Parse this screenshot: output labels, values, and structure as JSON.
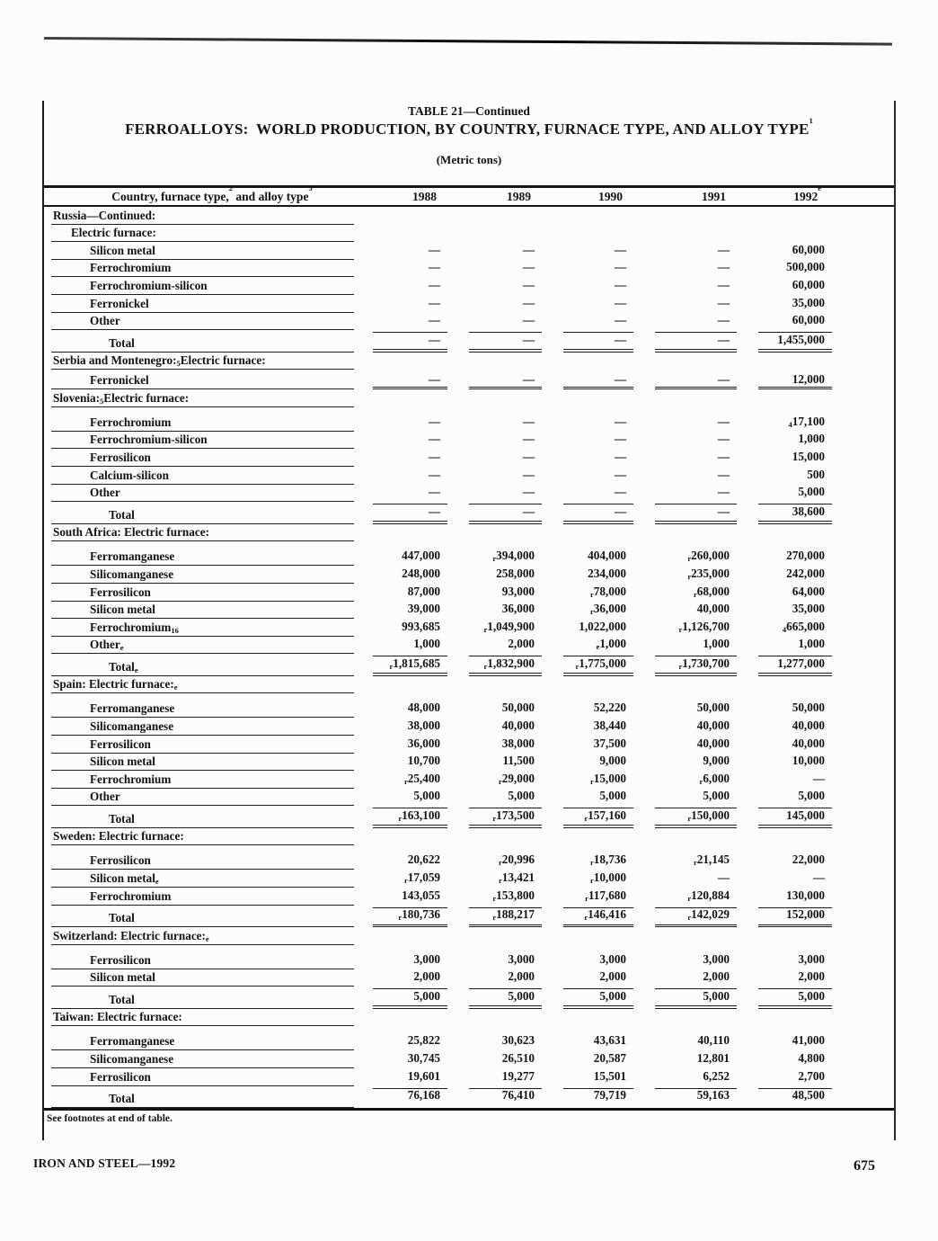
{
  "page": {
    "table_continuation": "TABLE 21—Continued",
    "title": "FERROALLOYS:  WORLD PRODUCTION, BY COUNTRY, FURNACE TYPE, AND ALLOY TYPE",
    "title_footnote_sup": "1",
    "units": "(Metric tons)",
    "see_footnotes": "See footnotes at end of table.",
    "footer_left": "IRON AND STEEL—1992",
    "page_number": "675"
  },
  "table": {
    "stub_header": {
      "t1": "Country, furnace type,",
      "s1": "2",
      "t2": " and alloy type",
      "s2": "3"
    },
    "year_columns": [
      {
        "v": "1988"
      },
      {
        "v": "1989"
      },
      {
        "v": "1990"
      },
      {
        "v": "1991"
      },
      {
        "v": "1992",
        "sup": "e"
      }
    ],
    "rows": [
      {
        "pre": "Russia—Continued:",
        "indent": 0,
        "type": "head"
      },
      {
        "pre": "Electric furnace:",
        "indent": 1,
        "type": "sub"
      },
      {
        "pre": "Silicon metal",
        "indent": 2,
        "cells": [
          "—",
          "—",
          "—",
          "—",
          "60,000"
        ]
      },
      {
        "pre": "Ferrochromium",
        "indent": 2,
        "cells": [
          "—",
          "—",
          "—",
          "—",
          "500,000"
        ]
      },
      {
        "pre": "Ferrochromium-silicon",
        "indent": 2,
        "cells": [
          "—",
          "—",
          "—",
          "—",
          "60,000"
        ]
      },
      {
        "pre": "Ferronickel",
        "indent": 2,
        "cells": [
          "—",
          "—",
          "—",
          "—",
          "35,000"
        ]
      },
      {
        "pre": "Other",
        "indent": 2,
        "cells": [
          "—",
          "—",
          "—",
          "—",
          "60,000"
        ]
      },
      {
        "pre": "Total",
        "indent": 3,
        "type": "total",
        "dbl": true,
        "cells": [
          "—",
          "—",
          "—",
          "—",
          "1,455,000"
        ]
      },
      {
        "pre": "Serbia and Montenegro:",
        "sup": "5",
        "post": " Electric furnace:",
        "indent": 0,
        "type": "head"
      },
      {
        "pre": "Ferronickel",
        "indent": 2,
        "dbl": true,
        "cells": [
          "—",
          "—",
          "—",
          "—",
          "12,000"
        ]
      },
      {
        "pre": "Slovenia:",
        "sup": "5",
        "post": " Electric furnace:",
        "indent": 0,
        "type": "head"
      },
      {
        "pre": "Ferrochromium",
        "indent": 2,
        "gap": true,
        "cells": [
          "—",
          "—",
          "—",
          "—",
          {
            "m": "4",
            "v": "17,100"
          }
        ]
      },
      {
        "pre": "Ferrochromium-silicon",
        "indent": 2,
        "cells": [
          "—",
          "—",
          "—",
          "—",
          "1,000"
        ]
      },
      {
        "pre": "Ferrosilicon",
        "indent": 2,
        "cells": [
          "—",
          "—",
          "—",
          "—",
          "15,000"
        ]
      },
      {
        "pre": "Calcium-silicon",
        "indent": 2,
        "cells": [
          "—",
          "—",
          "—",
          "—",
          "500"
        ]
      },
      {
        "pre": "Other",
        "indent": 2,
        "cells": [
          "—",
          "—",
          "—",
          "—",
          "5,000"
        ]
      },
      {
        "pre": "Total",
        "indent": 3,
        "type": "total",
        "dbl": true,
        "cells": [
          "—",
          "—",
          "—",
          "—",
          "38,600"
        ]
      },
      {
        "pre": "South Africa: Electric furnace:",
        "indent": 0,
        "type": "head"
      },
      {
        "pre": "Ferromanganese",
        "indent": 2,
        "gap": true,
        "cells": [
          "447,000",
          {
            "m": "r",
            "v": "394,000"
          },
          "404,000",
          {
            "m": "r",
            "v": "260,000"
          },
          "270,000"
        ]
      },
      {
        "pre": "Silicomanganese",
        "indent": 2,
        "cells": [
          "248,000",
          "258,000",
          "234,000",
          {
            "m": "r",
            "v": "235,000"
          },
          "242,000"
        ]
      },
      {
        "pre": "Ferrosilicon",
        "indent": 2,
        "cells": [
          "87,000",
          "93,000",
          {
            "m": "r",
            "v": "78,000"
          },
          {
            "m": "r",
            "v": "68,000"
          },
          "64,000"
        ]
      },
      {
        "pre": "Silicon metal",
        "indent": 2,
        "cells": [
          "39,000",
          "36,000",
          {
            "m": "r",
            "v": "36,000"
          },
          "40,000",
          "35,000"
        ]
      },
      {
        "pre": "Ferrochromium",
        "sup": "16",
        "indent": 2,
        "cells": [
          "993,685",
          {
            "m": "r",
            "v": "1,049,900"
          },
          "1,022,000",
          {
            "m": "r",
            "v": "1,126,700"
          },
          {
            "m": "4",
            "v": "665,000"
          }
        ]
      },
      {
        "pre": "Other",
        "sup": "e",
        "indent": 2,
        "cells": [
          "1,000",
          "2,000",
          {
            "m": "e",
            "v": "1,000"
          },
          "1,000",
          "1,000"
        ]
      },
      {
        "pre": "Total",
        "sup": "e",
        "indent": 3,
        "type": "total",
        "dbl": true,
        "cells": [
          {
            "m": "r",
            "v": "1,815,685"
          },
          {
            "m": "r",
            "v": "1,832,900"
          },
          {
            "m": "r",
            "v": "1,775,000"
          },
          {
            "m": "r",
            "v": "1,730,700"
          },
          "1,277,000"
        ]
      },
      {
        "pre": "Spain: Electric furnace:",
        "sup": "e",
        "indent": 0,
        "type": "head"
      },
      {
        "pre": "Ferromanganese",
        "indent": 2,
        "gap": true,
        "cells": [
          "48,000",
          "50,000",
          "52,220",
          "50,000",
          "50,000"
        ]
      },
      {
        "pre": "Silicomanganese",
        "indent": 2,
        "cells": [
          "38,000",
          "40,000",
          "38,440",
          "40,000",
          "40,000"
        ]
      },
      {
        "pre": "Ferrosilicon",
        "indent": 2,
        "cells": [
          "36,000",
          "38,000",
          "37,500",
          "40,000",
          "40,000"
        ]
      },
      {
        "pre": "Silicon metal",
        "indent": 2,
        "cells": [
          "10,700",
          "11,500",
          "9,000",
          "9,000",
          "10,000"
        ]
      },
      {
        "pre": "Ferrochromium",
        "indent": 2,
        "cells": [
          {
            "m": "r",
            "v": "25,400"
          },
          {
            "m": "r",
            "v": "29,000"
          },
          {
            "m": "r",
            "v": "15,000"
          },
          {
            "m": "r",
            "v": "6,000"
          },
          "—"
        ]
      },
      {
        "pre": "Other",
        "indent": 2,
        "cells": [
          "5,000",
          "5,000",
          "5,000",
          "5,000",
          "5,000"
        ]
      },
      {
        "pre": "Total",
        "indent": 3,
        "type": "total",
        "dbl": true,
        "cells": [
          {
            "m": "r",
            "v": "163,100"
          },
          {
            "m": "r",
            "v": "173,500"
          },
          {
            "m": "r",
            "v": "157,160"
          },
          {
            "m": "r",
            "v": "150,000"
          },
          "145,000"
        ]
      },
      {
        "pre": "Sweden: Electric furnace:",
        "indent": 0,
        "type": "head"
      },
      {
        "pre": "Ferrosilicon",
        "indent": 2,
        "gap": true,
        "cells": [
          "20,622",
          {
            "m": "r",
            "v": "20,996"
          },
          {
            "m": "r",
            "v": "18,736"
          },
          {
            "m": "r",
            "v": "21,145"
          },
          "22,000"
        ]
      },
      {
        "pre": "Silicon metal",
        "sup": "e",
        "indent": 2,
        "cells": [
          {
            "m": "r",
            "v": "17,059"
          },
          {
            "m": "r",
            "v": "13,421"
          },
          {
            "m": "r",
            "v": "10,000"
          },
          "—",
          "—"
        ]
      },
      {
        "pre": "Ferrochromium",
        "indent": 2,
        "cells": [
          "143,055",
          {
            "m": "r",
            "v": "153,800"
          },
          {
            "m": "r",
            "v": "117,680"
          },
          {
            "m": "r",
            "v": "120,884"
          },
          "130,000"
        ]
      },
      {
        "pre": "Total",
        "indent": 3,
        "type": "total",
        "dbl": true,
        "cells": [
          {
            "m": "r",
            "v": "180,736"
          },
          {
            "m": "r",
            "v": "188,217"
          },
          {
            "m": "r",
            "v": "146,416"
          },
          {
            "m": "r",
            "v": "142,029"
          },
          "152,000"
        ]
      },
      {
        "pre": "Switzerland: Electric furnace:",
        "sup": "e",
        "indent": 0,
        "type": "head"
      },
      {
        "pre": "Ferrosilicon",
        "indent": 2,
        "gap": true,
        "cells": [
          "3,000",
          "3,000",
          "3,000",
          "3,000",
          "3,000"
        ]
      },
      {
        "pre": "Silicon metal",
        "indent": 2,
        "cells": [
          "2,000",
          "2,000",
          "2,000",
          "2,000",
          "2,000"
        ]
      },
      {
        "pre": "Total",
        "indent": 3,
        "type": "total",
        "dbl": true,
        "cells": [
          "5,000",
          "5,000",
          "5,000",
          "5,000",
          "5,000"
        ]
      },
      {
        "pre": "Taiwan: Electric furnace:",
        "indent": 0,
        "type": "head"
      },
      {
        "pre": "Ferromanganese",
        "indent": 2,
        "gap": true,
        "cells": [
          "25,822",
          "30,623",
          "43,631",
          "40,110",
          "41,000"
        ]
      },
      {
        "pre": "Silicomanganese",
        "indent": 2,
        "cells": [
          "30,745",
          "26,510",
          "20,587",
          "12,801",
          "4,800"
        ]
      },
      {
        "pre": "Ferrosilicon",
        "indent": 2,
        "cells": [
          "19,601",
          "19,277",
          "15,501",
          "6,252",
          "2,700"
        ]
      },
      {
        "pre": "Total",
        "indent": 3,
        "type": "total",
        "cells": [
          "76,168",
          "76,410",
          "79,719",
          "59,163",
          "48,500"
        ]
      }
    ]
  }
}
